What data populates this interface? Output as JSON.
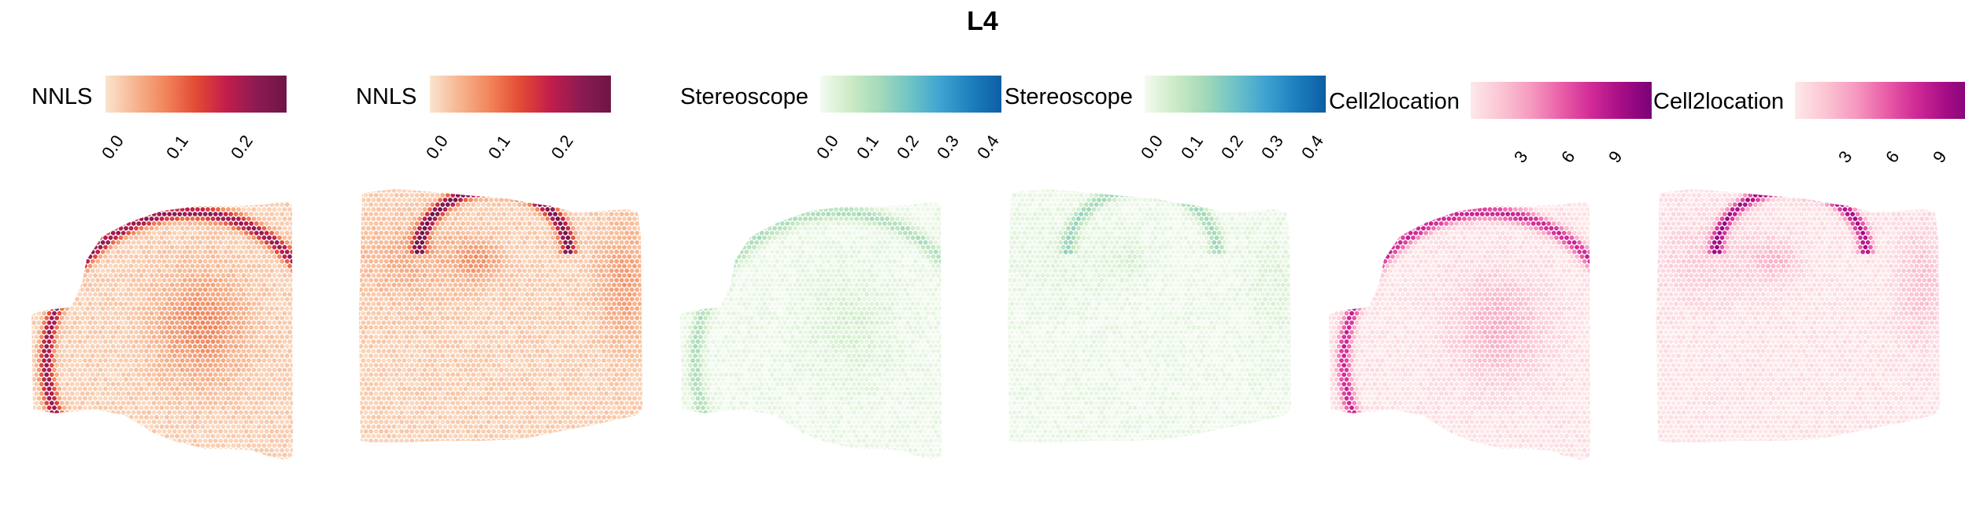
{
  "figure": {
    "title": "L4"
  },
  "chart_data": [
    {
      "type": "heatmap",
      "method": "NNLS",
      "legend_title": "NNLS",
      "colorscale": [
        "#fbe4cf",
        "#f6b48f",
        "#f1845a",
        "#e34a33",
        "#c21d4c",
        "#8c1b53",
        "#6e1546"
      ],
      "range": [
        0,
        0.28
      ],
      "ticks": [
        0.0,
        0.1,
        0.2
      ],
      "tick_labels": [
        "0.0",
        "0.1",
        "0.2"
      ],
      "section": "section-a"
    },
    {
      "type": "heatmap",
      "method": "NNLS",
      "legend_title": "NNLS",
      "colorscale": [
        "#fbe4cf",
        "#f6b48f",
        "#f1845a",
        "#e34a33",
        "#c21d4c",
        "#8c1b53",
        "#6e1546"
      ],
      "range": [
        0,
        0.29
      ],
      "ticks": [
        0.0,
        0.1,
        0.2
      ],
      "tick_labels": [
        "0.0",
        "0.1",
        "0.2"
      ],
      "section": "section-b"
    },
    {
      "type": "heatmap",
      "method": "Stereoscope",
      "legend_title": "Stereoscope",
      "colorscale": [
        "#f3faf0",
        "#cdebc5",
        "#a2d9b9",
        "#6ec3c6",
        "#3ea3d1",
        "#1d7fbd",
        "#0d5ea4"
      ],
      "range": [
        0,
        0.45
      ],
      "ticks": [
        0.0,
        0.1,
        0.2,
        0.3,
        0.4
      ],
      "tick_labels": [
        "0.0",
        "0.1",
        "0.2",
        "0.3",
        "0.4"
      ],
      "section": "section-a"
    },
    {
      "type": "heatmap",
      "method": "Stereoscope",
      "legend_title": "Stereoscope",
      "colorscale": [
        "#f3faf0",
        "#cdebc5",
        "#a2d9b9",
        "#6ec3c6",
        "#3ea3d1",
        "#1d7fbd",
        "#0d5ea4"
      ],
      "range": [
        0,
        0.45
      ],
      "ticks": [
        0.0,
        0.1,
        0.2,
        0.3,
        0.4
      ],
      "tick_labels": [
        "0.0",
        "0.1",
        "0.2",
        "0.3",
        "0.4"
      ],
      "section": "section-b"
    },
    {
      "type": "heatmap",
      "method": "Cell2location",
      "legend_title": "Cell2location",
      "colorscale": [
        "#fde9ea",
        "#fbc5d3",
        "#f59ac0",
        "#ea5fa8",
        "#d12a96",
        "#a60d86",
        "#7a0177"
      ],
      "range": [
        0,
        11.5
      ],
      "ticks": [
        3,
        6,
        9
      ],
      "tick_labels": [
        "3",
        "6",
        "9"
      ],
      "section": "section-a"
    },
    {
      "type": "heatmap",
      "method": "Cell2location",
      "legend_title": "Cell2location",
      "colorscale": [
        "#fde9ea",
        "#fbc5d3",
        "#f59ac0",
        "#ea5fa8",
        "#d12a96",
        "#a60d86",
        "#7a0177"
      ],
      "range": [
        0,
        11.5
      ],
      "ticks": [
        3,
        6,
        9
      ],
      "tick_labels": [
        "3",
        "6",
        "9"
      ],
      "section": "section-b"
    }
  ]
}
